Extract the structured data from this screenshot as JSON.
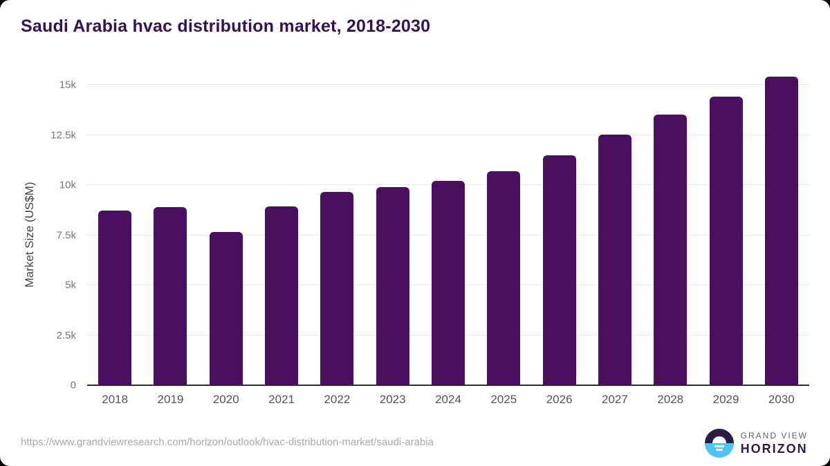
{
  "page": {
    "background": "#000000",
    "card_background": "#ffffff"
  },
  "header": {
    "title": "Saudi Arabia hvac distribution market, 2018-2030"
  },
  "chart_data": {
    "type": "bar",
    "title": "Saudi Arabia hvac distribution market, 2018-2030",
    "categories": [
      "2018",
      "2019",
      "2020",
      "2021",
      "2022",
      "2023",
      "2024",
      "2025",
      "2026",
      "2027",
      "2028",
      "2029",
      "2030"
    ],
    "values": [
      8730,
      8910,
      7660,
      8940,
      9660,
      9890,
      10200,
      10700,
      11490,
      12520,
      13520,
      14420,
      15430
    ],
    "xlabel": "",
    "ylabel": "Market Size (US$M)",
    "ylim": [
      0,
      15000
    ],
    "yticks": [
      {
        "value": 0,
        "label": "0"
      },
      {
        "value": 2500,
        "label": "2.5k"
      },
      {
        "value": 5000,
        "label": "5k"
      },
      {
        "value": 7500,
        "label": "7.5k"
      },
      {
        "value": 10000,
        "label": "10k"
      },
      {
        "value": 12500,
        "label": "12.5k"
      },
      {
        "value": 15000,
        "label": "15k"
      }
    ],
    "bar_color": "#48105f",
    "grid": "horizontal-only",
    "legend": "none"
  },
  "footer": {
    "source_url": "https://www.grandviewresearch.com/horizon/outlook/hvac-distribution-market/saudi-arabia",
    "logo": {
      "brand_line1": "GRAND VIEW",
      "brand_line2": "HORIZON"
    }
  },
  "colors": {
    "title": "#341253",
    "bar": "#48105f",
    "axis_line": "#2b2b2b",
    "gridline": "#e8e8e8",
    "tick_label": "#777777",
    "x_label": "#555555",
    "y_axis_title": "#444444",
    "source_text": "#a9a9a9",
    "logo_dark": "#2e1a47",
    "logo_blue": "#4fc4f0"
  }
}
